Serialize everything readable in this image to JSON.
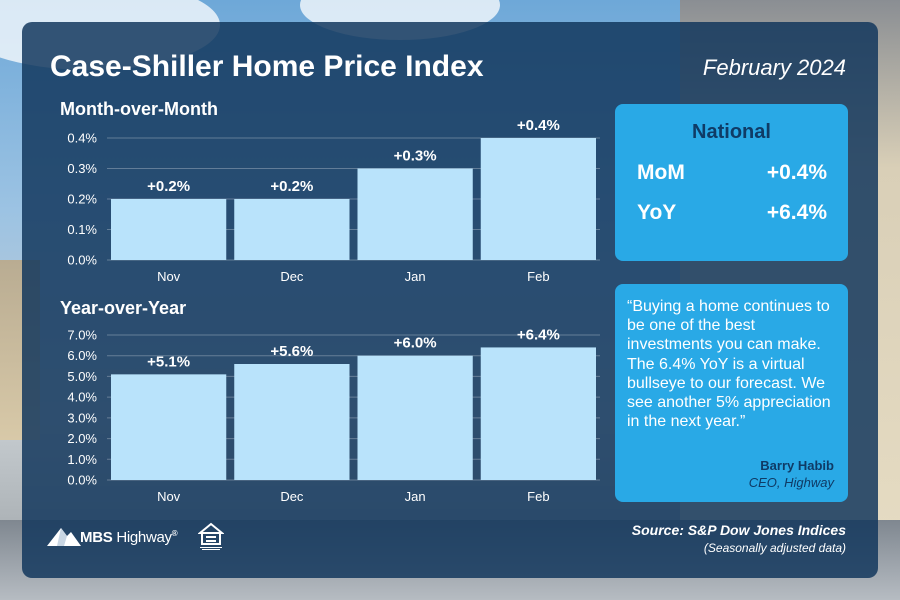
{
  "header": {
    "title": "Case-Shiller Home Price Index",
    "date": "February 2024"
  },
  "national": {
    "title": "National",
    "rows": [
      {
        "label": "MoM",
        "value": "+0.4%"
      },
      {
        "label": "YoY",
        "value": "+6.4%"
      }
    ]
  },
  "quote": {
    "text": "“Buying a home continues to be one of the best investments you can make. The 6.4% YoY is a virtual bullseye to our forecast. We see another 5% appreciation in the next year.”",
    "author": "Barry Habib",
    "role": "CEO, Highway"
  },
  "footer": {
    "source": "Source: S&P Dow Jones Indices",
    "note": "(Seasonally adjusted data)",
    "logo_bold": "MBS",
    "logo_light": "Highway",
    "logo_mark": "®",
    "eho_icon": "equal-housing-opportunity-icon"
  },
  "colors": {
    "panel": "#11365c",
    "bar": "#b9e3fb",
    "accent": "#29a9e6",
    "dark_text": "#0f3b66"
  },
  "chart_data": [
    {
      "type": "bar",
      "title": "Month-over-Month",
      "categories": [
        "Nov",
        "Dec",
        "Jan",
        "Feb"
      ],
      "values": [
        0.2,
        0.2,
        0.3,
        0.4
      ],
      "data_labels": [
        "+0.2%",
        "+0.2%",
        "+0.3%",
        "+0.4%"
      ],
      "yticks": [
        "0.0%",
        "0.1%",
        "0.2%",
        "0.3%",
        "0.4%"
      ],
      "ylim": [
        0,
        0.4
      ],
      "grid": true
    },
    {
      "type": "bar",
      "title": "Year-over-Year",
      "categories": [
        "Nov",
        "Dec",
        "Jan",
        "Feb"
      ],
      "values": [
        5.1,
        5.6,
        6.0,
        6.4
      ],
      "data_labels": [
        "+5.1%",
        "+5.6%",
        "+6.0%",
        "+6.4%"
      ],
      "yticks": [
        "0.0%",
        "1.0%",
        "2.0%",
        "3.0%",
        "4.0%",
        "5.0%",
        "6.0%",
        "7.0%"
      ],
      "ylim": [
        0,
        7
      ],
      "grid": true
    }
  ]
}
